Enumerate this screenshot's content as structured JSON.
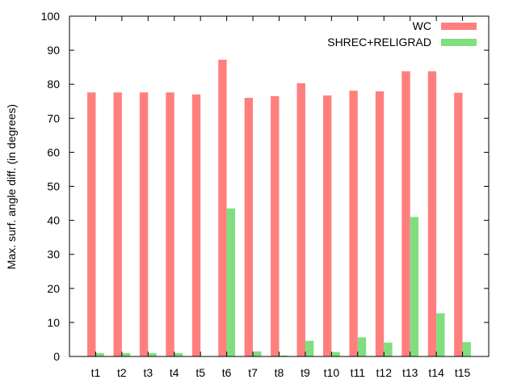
{
  "chart_data": {
    "type": "bar",
    "ylabel": "Max. surf. angle diff. (in degrees)",
    "xlabel": "",
    "title": "",
    "ylim": [
      0,
      100
    ],
    "yticks": [
      "0",
      "10",
      "20",
      "30",
      "40",
      "50",
      "60",
      "70",
      "80",
      "90",
      "100"
    ],
    "categories": [
      "t1",
      "t2",
      "t3",
      "t4",
      "t5",
      "t6",
      "t7",
      "t8",
      "t9",
      "t10",
      "t11",
      "t12",
      "t13",
      "t14",
      "t15"
    ],
    "legend_position": "top-right",
    "grid": false,
    "series": [
      {
        "name": "WC",
        "color": "#ff7f7f",
        "values": [
          77.6,
          77.6,
          77.6,
          77.6,
          77.0,
          87.2,
          76.0,
          76.5,
          80.3,
          76.7,
          78.1,
          77.9,
          83.8,
          83.8,
          77.5
        ]
      },
      {
        "name": "SHREC+RELIGRAD",
        "color": "#7fdf7f",
        "values": [
          1.0,
          1.0,
          1.0,
          1.0,
          0.0,
          43.5,
          1.5,
          0.3,
          4.6,
          1.3,
          5.6,
          4.1,
          41.0,
          12.7,
          4.2
        ]
      }
    ]
  }
}
